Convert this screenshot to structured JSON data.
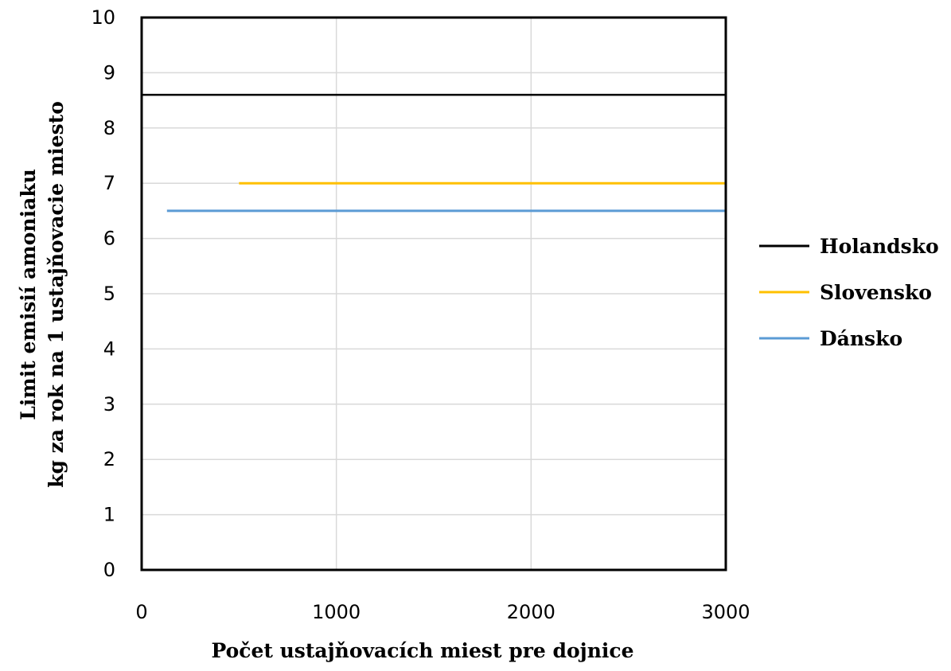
{
  "chart_data": {
    "type": "line",
    "title": "",
    "xlabel": "Počet ustajňovacích miest pre dojnice",
    "ylabel_lines": [
      "Limit emisií amoniaku",
      "kg za  rok na 1 ustajňovacie miesto"
    ],
    "xlim": [
      0,
      3000
    ],
    "ylim": [
      0,
      10
    ],
    "xticks": [
      0,
      1000,
      2000,
      3000
    ],
    "yticks": [
      0,
      1,
      2,
      3,
      4,
      5,
      6,
      7,
      8,
      9,
      10
    ],
    "xtick_labels": [
      "0",
      "1000",
      "2000",
      "3000"
    ],
    "ytick_labels": [
      "0",
      "1",
      "2",
      "3",
      "4",
      "5",
      "6",
      "7",
      "8",
      "9",
      "10"
    ],
    "grid": {
      "x": true,
      "y": true
    },
    "legend_position": "right",
    "series": [
      {
        "name": "Holandsko",
        "color": "#000000",
        "x": [
          0,
          3000
        ],
        "y": [
          8.6,
          8.6
        ]
      },
      {
        "name": "Slovensko",
        "color": "#FFC000",
        "x": [
          500,
          3000
        ],
        "y": [
          7.0,
          7.0
        ]
      },
      {
        "name": "Dánsko",
        "color": "#5B9BD5",
        "x": [
          130,
          3000
        ],
        "y": [
          6.5,
          6.5
        ]
      }
    ]
  }
}
